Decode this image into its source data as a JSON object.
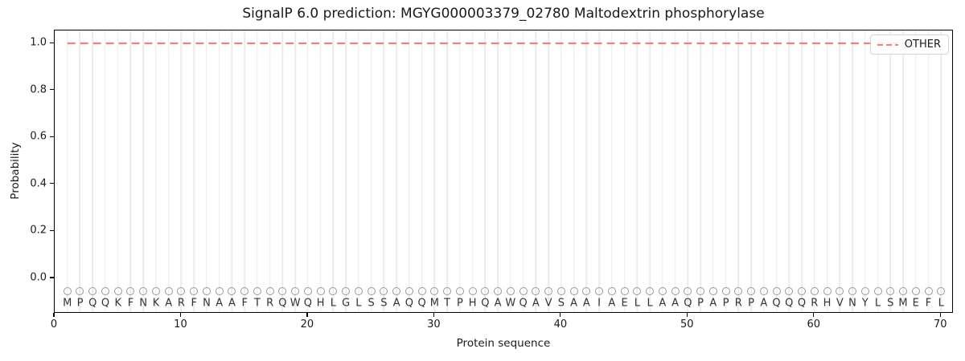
{
  "title": "SignalP 6.0 prediction: MGYG000003379_02780 Maltodextrin phosphorylase",
  "xlabel": "Protein sequence",
  "ylabel": "Probability",
  "legend": {
    "label": "OTHER"
  },
  "colors": {
    "other_line": "#ee8181",
    "grid": "#ececec",
    "marker_outline": "#999999",
    "residue_letter": "#333333",
    "spine": "#000000",
    "legend_border": "#d5d5d5"
  },
  "chart_data": {
    "type": "line",
    "title": "SignalP 6.0 prediction: MGYG000003379_02780 Maltodextrin phosphorylase",
    "xlabel": "Protein sequence",
    "ylabel": "Probability",
    "xlim": [
      0,
      71
    ],
    "ylim": [
      -0.15,
      1.055
    ],
    "x_ticks": [
      0,
      10,
      20,
      30,
      40,
      50,
      60,
      70
    ],
    "y_ticks": [
      0.0,
      0.2,
      0.4,
      0.6,
      0.8,
      1.0
    ],
    "grid": "vertical-per-residue",
    "legend_position": "upper right",
    "sequence": "MPQQKFNKARFNAAFTRQWQHLGLSSAQQMTPHQAWQAVSAAIAELLAAQPAPRPAQQQRHVNYLSMEFL",
    "sequence_length": 70,
    "series": [
      {
        "name": "OTHER",
        "style": "dashed",
        "color": "#ee8181",
        "x_start": 1,
        "x_end": 70,
        "constant_value": 1.0
      }
    ],
    "marker_row_y": -0.055,
    "letter_row_y": -0.105
  }
}
